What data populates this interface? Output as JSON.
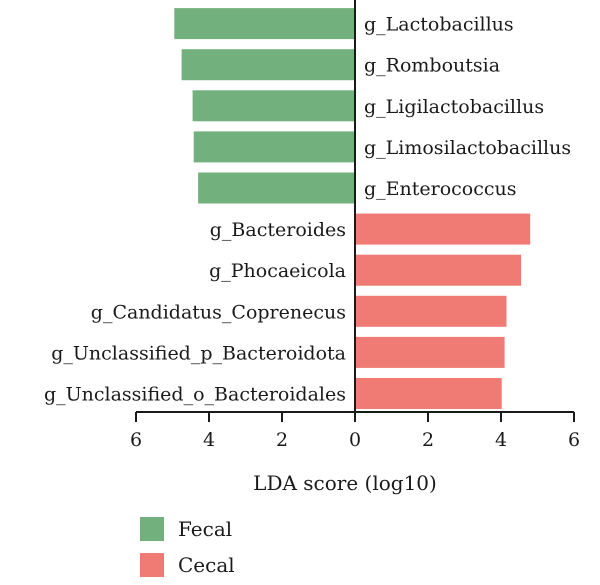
{
  "chart_data": {
    "type": "bar",
    "orientation": "horizontal-diverging",
    "xlabel": "LDA score (log10)",
    "xlim": [
      -6,
      6
    ],
    "xticks": [
      -6,
      -4,
      -2,
      0,
      2,
      4,
      6
    ],
    "xtick_labels": [
      "6",
      "4",
      "2",
      "0",
      "2",
      "4",
      "6"
    ],
    "grid": false,
    "legend_position": "bottom-left",
    "series": [
      {
        "name": "Fecal",
        "color": "#72b07e",
        "categories": [
          "g_Lactobacillus",
          "g_Romboutsia",
          "g_Ligilactobacillus",
          "g_Limosilactobacillus",
          "g_Enterococcus"
        ],
        "values": [
          -4.95,
          -4.75,
          -4.45,
          -4.42,
          -4.3
        ]
      },
      {
        "name": "Cecal",
        "color": "#ef7b74",
        "categories": [
          "g_Bacteroides",
          "g_Phocaeicola",
          "g_Candidatus_Coprenecus",
          "g_Unclassified_p_Bacteroidota",
          "g_Unclassified_o_Bacteroidales"
        ],
        "values": [
          4.8,
          4.55,
          4.15,
          4.1,
          4.02
        ]
      }
    ]
  }
}
